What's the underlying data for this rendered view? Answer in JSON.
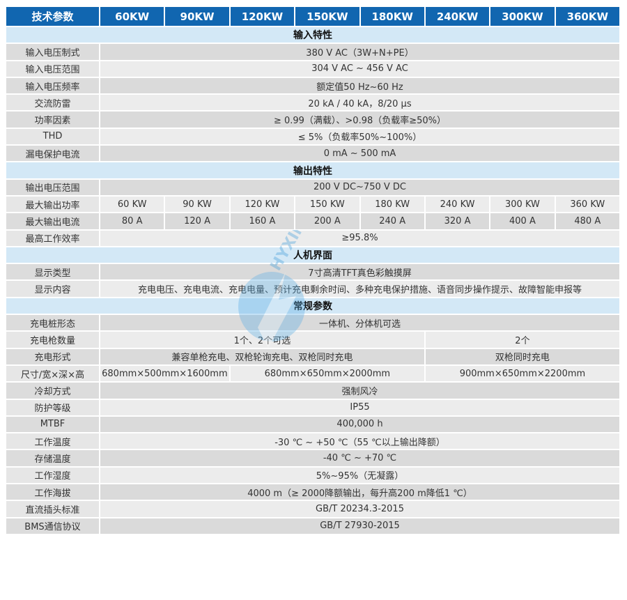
{
  "header": [
    "技术参数",
    "60KW",
    "90KW",
    "120KW",
    "150KW",
    "180KW",
    "240KW",
    "300KW",
    "360KW"
  ],
  "rows": [
    {
      "type": "section",
      "cells": [
        {
          "text": "输入特性",
          "span": 9
        }
      ]
    },
    {
      "type": "data",
      "cells": [
        {
          "text": "输入电压制式"
        },
        {
          "text": "380 V AC（3W+N+PE）",
          "span": 8
        }
      ]
    },
    {
      "type": "data",
      "cells": [
        {
          "text": "输入电压范围"
        },
        {
          "text": "304 V AC ~ 456 V AC",
          "span": 8
        }
      ]
    },
    {
      "type": "data",
      "cells": [
        {
          "text": "输入电压频率"
        },
        {
          "text": "额定值50 Hz~60 Hz",
          "span": 8
        }
      ]
    },
    {
      "type": "data",
      "cells": [
        {
          "text": "交流防雷"
        },
        {
          "text": "20 kA / 40 kA，8/20 μs",
          "span": 8
        }
      ]
    },
    {
      "type": "data",
      "cells": [
        {
          "text": "功率因素"
        },
        {
          "text": "≥ 0.99（满载）、>0.98（负载率≥50%）",
          "span": 8
        }
      ]
    },
    {
      "type": "data",
      "cells": [
        {
          "text": "THD"
        },
        {
          "text": "≤ 5%（负载率50%~100%）",
          "span": 8
        }
      ]
    },
    {
      "type": "data",
      "cells": [
        {
          "text": "漏电保护电流"
        },
        {
          "text": "0 mA ~ 500 mA",
          "span": 8
        }
      ]
    },
    {
      "type": "section",
      "cells": [
        {
          "text": "输出特性",
          "span": 9
        }
      ]
    },
    {
      "type": "data",
      "cells": [
        {
          "text": "输出电压范围"
        },
        {
          "text": "200 V DC~750 V DC",
          "span": 8
        }
      ]
    },
    {
      "type": "data",
      "cells": [
        {
          "text": "最大输出功率"
        },
        {
          "text": "60 KW"
        },
        {
          "text": "90 KW"
        },
        {
          "text": "120 KW"
        },
        {
          "text": "150 KW"
        },
        {
          "text": "180 KW"
        },
        {
          "text": "240 KW"
        },
        {
          "text": "300 KW"
        },
        {
          "text": "360 KW"
        }
      ]
    },
    {
      "type": "data",
      "cells": [
        {
          "text": "最大输出电流"
        },
        {
          "text": "80 A"
        },
        {
          "text": "120 A"
        },
        {
          "text": "160 A"
        },
        {
          "text": "200 A"
        },
        {
          "text": "240 A"
        },
        {
          "text": "320 A"
        },
        {
          "text": "400 A"
        },
        {
          "text": "480 A"
        }
      ]
    },
    {
      "type": "data",
      "cells": [
        {
          "text": "最高工作效率"
        },
        {
          "text": "≥95.8%",
          "span": 8
        }
      ]
    },
    {
      "type": "section",
      "cells": [
        {
          "text": "人机界面",
          "span": 9
        }
      ]
    },
    {
      "type": "data",
      "cells": [
        {
          "text": "显示类型"
        },
        {
          "text": "7寸高清TFT真色彩触摸屏",
          "span": 8
        }
      ]
    },
    {
      "type": "data",
      "cells": [
        {
          "text": "显示内容"
        },
        {
          "text": "充电电压、充电电流、充电电量、预计充电剩余时间、多种充电保护措施、语音同步操作提示、故障智能申报等",
          "span": 8
        }
      ]
    },
    {
      "type": "section",
      "cells": [
        {
          "text": "常规参数",
          "span": 9
        }
      ]
    },
    {
      "type": "data",
      "cells": [
        {
          "text": "充电桩形态"
        },
        {
          "text": "一体机、分体机可选",
          "span": 8
        }
      ]
    },
    {
      "type": "data",
      "cells": [
        {
          "text": "充电枪数量"
        },
        {
          "text": "1个、2个可选",
          "span": 5
        },
        {
          "text": "2个",
          "span": 3
        }
      ]
    },
    {
      "type": "data",
      "cells": [
        {
          "text": "充电形式"
        },
        {
          "text": "兼容单枪充电、双枪轮询充电、双枪同时充电",
          "span": 5
        },
        {
          "text": "双枪同时充电",
          "span": 3
        }
      ]
    },
    {
      "type": "data",
      "cells": [
        {
          "text": "尺寸/宽×深×高"
        },
        {
          "text": "680mm×500mm×1600mm",
          "span": 2
        },
        {
          "text": "680mm×650mm×2000mm",
          "span": 3
        },
        {
          "text": "900mm×650mm×2200mm",
          "span": 3
        }
      ]
    },
    {
      "type": "data",
      "cells": [
        {
          "text": "冷却方式"
        },
        {
          "text": "强制风冷",
          "span": 8
        }
      ]
    },
    {
      "type": "data",
      "cells": [
        {
          "text": "防护等级"
        },
        {
          "text": "IP55",
          "span": 8
        }
      ]
    },
    {
      "type": "data",
      "cells": [
        {
          "text": "MTBF"
        },
        {
          "text": "400,000 h",
          "span": 8
        }
      ]
    },
    {
      "type": "data",
      "cells": [
        {
          "text": "工作温度"
        },
        {
          "text": "-30 ℃ ~ +50 ℃（55 ℃以上输出降额）",
          "span": 8
        }
      ]
    },
    {
      "type": "data",
      "cells": [
        {
          "text": "存储温度"
        },
        {
          "text": "-40 ℃ ~ +70 ℃",
          "span": 8
        }
      ]
    },
    {
      "type": "data",
      "cells": [
        {
          "text": "工作湿度"
        },
        {
          "text": "5%~95%（无凝露）",
          "span": 8
        }
      ]
    },
    {
      "type": "data",
      "cells": [
        {
          "text": "工作海拔"
        },
        {
          "text": "4000 m（≥ 2000降额输出，每升高200 m降低1 ℃）",
          "span": 8
        }
      ]
    },
    {
      "type": "data",
      "cells": [
        {
          "text": "直流插头标准"
        },
        {
          "text": "GB/T 20234.3-2015",
          "span": 8
        }
      ]
    },
    {
      "type": "data",
      "cells": [
        {
          "text": "BMS通信协议"
        },
        {
          "text": "GB/T 27930-2015",
          "span": 8
        }
      ]
    }
  ],
  "watermark": {
    "text": "HYXIN",
    "color": "#3a9ad9"
  },
  "colors": {
    "header_bg": "#1166b0",
    "section_bg": "#d3e8f6",
    "row_dark": "#dadada",
    "row_light": "#ececec"
  }
}
